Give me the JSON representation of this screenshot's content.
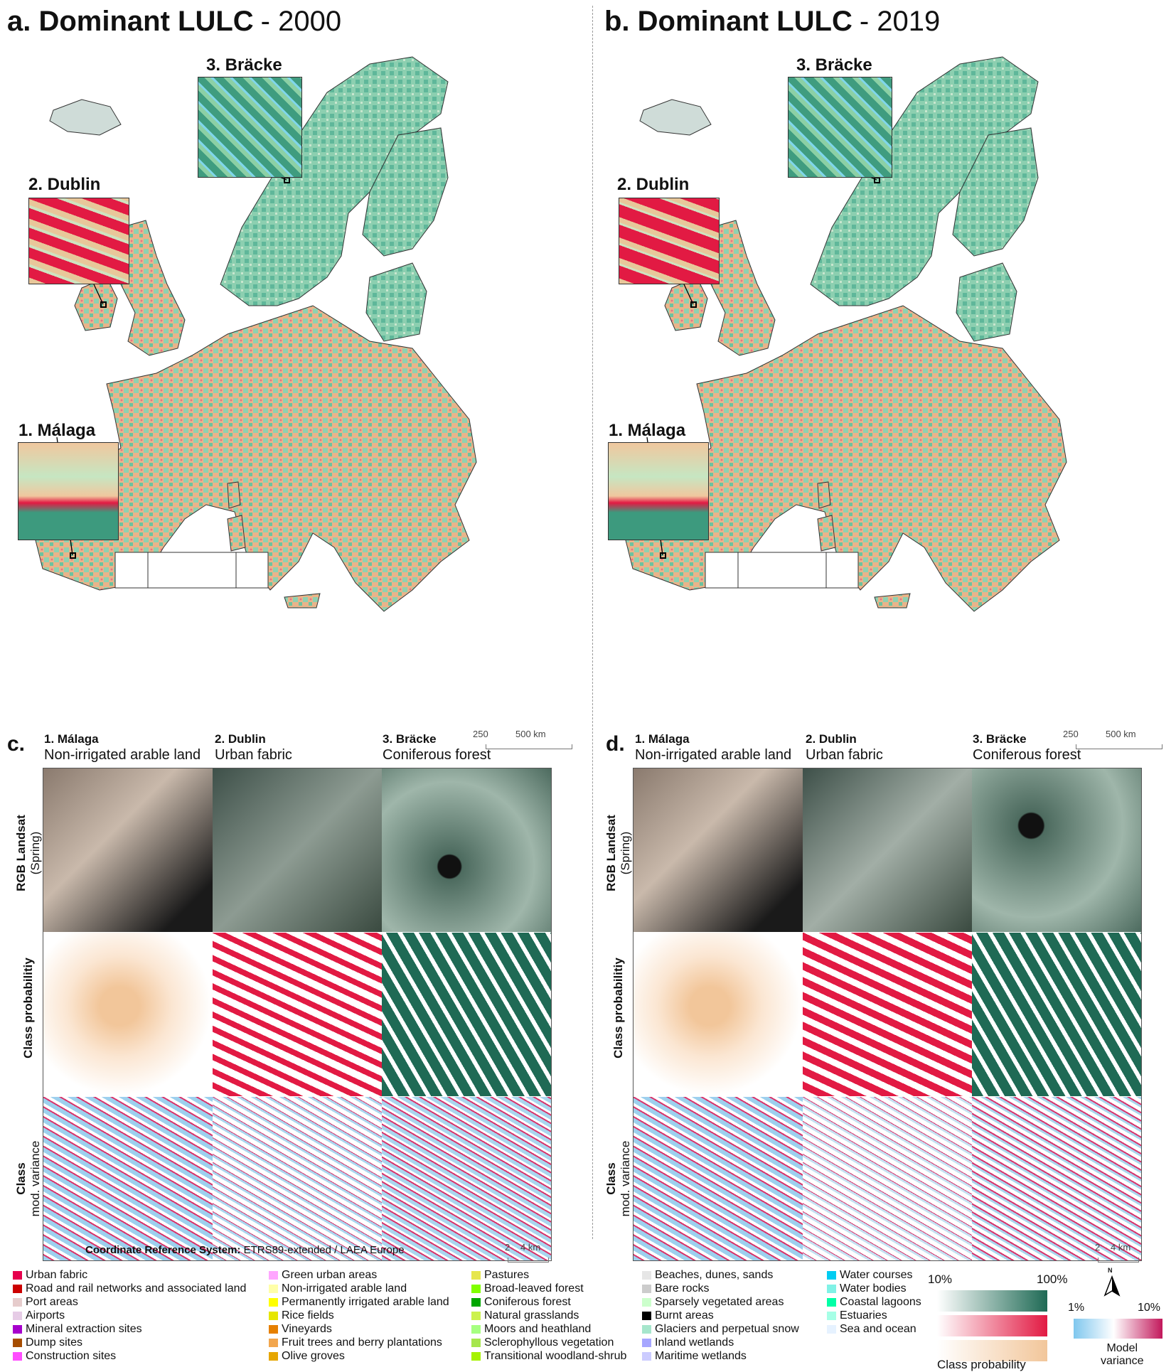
{
  "panel_a": {
    "letter_title": "a. Dominant LULC",
    "year": "- 2000"
  },
  "panel_b": {
    "letter_title": "b. Dominant LULC",
    "year": "- 2019"
  },
  "insets": {
    "bracke": "3. Bräcke",
    "dublin": "2. Dublin",
    "malaga": "1. Málaga"
  },
  "map_scalebar": {
    "tick1": "250",
    "tick2": "500 km"
  },
  "panel_c": {
    "letter": "c."
  },
  "panel_d": {
    "letter": "d."
  },
  "columns": [
    {
      "site": "1. Málaga",
      "class": "Non-irrigated arable land"
    },
    {
      "site": "2. Dublin",
      "class": "Urban fabric"
    },
    {
      "site": "3. Bräcke",
      "class": "Coniferous forest"
    }
  ],
  "rows": {
    "rgb": "RGB Landsat",
    "rgb_sub": "(Spring)",
    "prob": "Class probabilitiy",
    "var": "Class",
    "var_sub": "mod. variance"
  },
  "crs": {
    "label": "Coordinate Reference System:",
    "value": "ETRS89-extended / LAEA Europe"
  },
  "detail_scalebar": {
    "tick1": "2",
    "tick2": "4 km"
  },
  "legend_col1": [
    {
      "label": "Urban fabric",
      "color": "#e6004d"
    },
    {
      "label": "Road and rail networks and associated land",
      "color": "#cc0000"
    },
    {
      "label": "Port areas",
      "color": "#e6cccc"
    },
    {
      "label": "Airports",
      "color": "#e6cce6"
    },
    {
      "label": "Mineral extraction sites",
      "color": "#a600cc"
    },
    {
      "label": "Dump sites",
      "color": "#a64d00"
    },
    {
      "label": "Construction sites",
      "color": "#ff4dff"
    }
  ],
  "legend_col2": [
    {
      "label": "Green urban areas",
      "color": "#ffa6ff"
    },
    {
      "label": "Non-irrigated arable land",
      "color": "#ffffa8"
    },
    {
      "label": "Permanently irrigated arable land",
      "color": "#ffff00"
    },
    {
      "label": "Rice fields",
      "color": "#e6e600"
    },
    {
      "label": "Vineyards",
      "color": "#e68000"
    },
    {
      "label": "Fruit trees and berry plantations",
      "color": "#f2a64d"
    },
    {
      "label": "Olive groves",
      "color": "#e6a600"
    }
  ],
  "legend_col3": [
    {
      "label": "Pastures",
      "color": "#e6e64d"
    },
    {
      "label": "Broad-leaved forest",
      "color": "#80ff00"
    },
    {
      "label": "Coniferous forest",
      "color": "#00a600"
    },
    {
      "label": "Natural grasslands",
      "color": "#ccf24d"
    },
    {
      "label": "Moors and heathland",
      "color": "#a6ff80"
    },
    {
      "label": "Sclerophyllous vegetation",
      "color": "#a6e64d"
    },
    {
      "label": "Transitional woodland-shrub",
      "color": "#a6f200"
    }
  ],
  "legend_col4": [
    {
      "label": "Beaches, dunes, sands",
      "color": "#e6e6e6"
    },
    {
      "label": "Bare rocks",
      "color": "#cccccc"
    },
    {
      "label": "Sparsely vegetated areas",
      "color": "#ccffcc"
    },
    {
      "label": "Burnt areas",
      "color": "#000000"
    },
    {
      "label": "Glaciers and perpetual snow",
      "color": "#a6e6cc"
    },
    {
      "label": "Inland wetlands",
      "color": "#a6a6ff"
    },
    {
      "label": "Maritime wetlands",
      "color": "#ccccff"
    }
  ],
  "legend_col5": [
    {
      "label": "Water courses",
      "color": "#00ccf2"
    },
    {
      "label": "Water bodies",
      "color": "#80f2e6"
    },
    {
      "label": "Coastal lagoons",
      "color": "#00ffa6"
    },
    {
      "label": "Estuaries",
      "color": "#a6ffe6"
    },
    {
      "label": "Sea and ocean",
      "color": "#e6f2ff"
    }
  ],
  "prob_legend": {
    "min": "10%",
    "max": "100%",
    "caption": "Class probability"
  },
  "var_legend": {
    "min": "1%",
    "max": "10%",
    "caption1": "Model",
    "caption2": "variance"
  },
  "north": "N"
}
